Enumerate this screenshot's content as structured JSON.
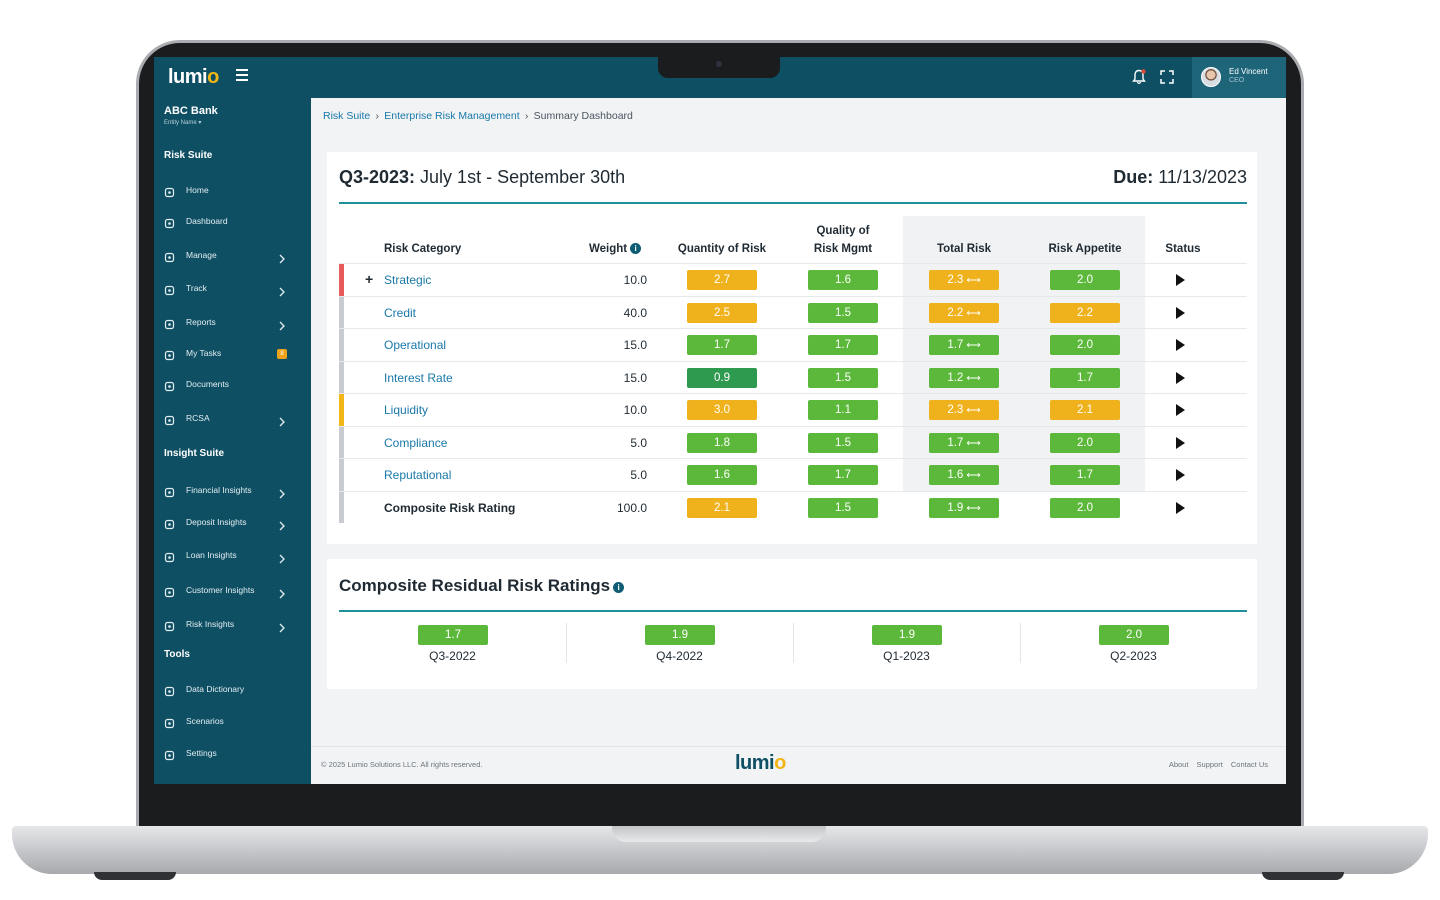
{
  "app": {
    "logo": "lumi",
    "logo_accent": "o"
  },
  "user": {
    "name": "Ed Vincent",
    "role": "CEO"
  },
  "entity": {
    "name": "ABC Bank",
    "label": "Entity Name ▾"
  },
  "sidebar": {
    "sections": [
      {
        "title": "Risk Suite",
        "items": [
          {
            "label": "Home",
            "icon": "home-icon",
            "chevron": false
          },
          {
            "label": "Dashboard",
            "icon": "dashboard-icon",
            "chevron": false
          },
          {
            "label": "Manage",
            "icon": "manage-icon",
            "chevron": true
          },
          {
            "label": "Track",
            "icon": "track-icon",
            "chevron": true
          },
          {
            "label": "Reports",
            "icon": "reports-icon",
            "chevron": true
          },
          {
            "label": "My Tasks",
            "icon": "tasks-icon",
            "chevron": false,
            "badge": "8"
          },
          {
            "label": "Documents",
            "icon": "documents-icon",
            "chevron": false
          },
          {
            "label": "RCSA",
            "icon": "rcsa-icon",
            "chevron": true
          }
        ]
      },
      {
        "title": "Insight Suite",
        "items": [
          {
            "label": "Financial Insights",
            "icon": "financial-icon",
            "chevron": true
          },
          {
            "label": "Deposit Insights",
            "icon": "deposit-icon",
            "chevron": true
          },
          {
            "label": "Loan Insights",
            "icon": "loan-icon",
            "chevron": true
          },
          {
            "label": "Customer Insights",
            "icon": "customer-icon",
            "chevron": true
          },
          {
            "label": "Risk Insights",
            "icon": "risk-icon",
            "chevron": true
          }
        ]
      },
      {
        "title": "Tools",
        "items": [
          {
            "label": "Data Dictionary",
            "icon": "dictionary-icon",
            "chevron": false
          },
          {
            "label": "Scenarios",
            "icon": "scenarios-icon",
            "chevron": false
          },
          {
            "label": "Settings",
            "icon": "gear-icon",
            "chevron": false
          }
        ]
      }
    ]
  },
  "breadcrumb": {
    "items": [
      "Risk Suite",
      "Enterprise Risk Management"
    ],
    "current": "Summary Dashboard"
  },
  "summary": {
    "period_bold": "Q3-2023:",
    "period_text": " July 1st - September 30th",
    "due_bold": "Due:",
    "due_text": " 11/13/2023",
    "headers": {
      "category": "Risk Category",
      "weight": "Weight",
      "quantity": "Quantity of Risk",
      "quality_line1": "Quality of",
      "quality_line2": "Risk Mgmt",
      "total": "Total Risk",
      "appetite": "Risk Appetite",
      "status": "Status"
    },
    "rows": [
      {
        "category": "Strategic",
        "weight": "10.0",
        "quantity": "2.7",
        "quality": "1.6",
        "total": "2.3",
        "appetite": "2.0",
        "expandable": true,
        "bar": "#e85a5a",
        "bold": false
      },
      {
        "category": "Credit",
        "weight": "40.0",
        "quantity": "2.5",
        "quality": "1.5",
        "total": "2.2",
        "appetite": "2.2",
        "expandable": false,
        "bar": "#c8ccd1",
        "bold": false
      },
      {
        "category": "Operational",
        "weight": "15.0",
        "quantity": "1.7",
        "quality": "1.7",
        "total": "1.7",
        "appetite": "2.0",
        "expandable": false,
        "bar": "#c8ccd1",
        "bold": false
      },
      {
        "category": "Interest Rate",
        "weight": "15.0",
        "quantity": "0.9",
        "quality": "1.5",
        "total": "1.2",
        "appetite": "1.7",
        "expandable": false,
        "bar": "#c8ccd1",
        "bold": false
      },
      {
        "category": "Liquidity",
        "weight": "10.0",
        "quantity": "3.0",
        "quality": "1.1",
        "total": "2.3",
        "appetite": "2.1",
        "expandable": false,
        "bar": "#f3b617",
        "bold": false
      },
      {
        "category": "Compliance",
        "weight": "5.0",
        "quantity": "1.8",
        "quality": "1.5",
        "total": "1.7",
        "appetite": "2.0",
        "expandable": false,
        "bar": "#c8ccd1",
        "bold": false
      },
      {
        "category": "Reputational",
        "weight": "5.0",
        "quantity": "1.6",
        "quality": "1.7",
        "total": "1.6",
        "appetite": "1.7",
        "expandable": false,
        "bar": "#c8ccd1",
        "bold": false
      },
      {
        "category": "Composite Risk Rating",
        "weight": "100.0",
        "quantity": "2.1",
        "quality": "1.5",
        "total": "1.9",
        "appetite": "2.0",
        "expandable": false,
        "bar": "#c8ccd1",
        "bold": true
      }
    ],
    "trend_arrow": "⟷"
  },
  "composite": {
    "title": "Composite Residual Risk Ratings",
    "quarters": [
      {
        "value": "1.7",
        "label": "Q3-2022"
      },
      {
        "value": "1.9",
        "label": "Q4-2022"
      },
      {
        "value": "1.9",
        "label": "Q1-2023"
      },
      {
        "value": "2.0",
        "label": "Q2-2023"
      }
    ]
  },
  "footer": {
    "copyright": "© 2025 Lumio Solutions LLC. All rights reserved.",
    "links": [
      "About",
      "Support",
      "Contact Us"
    ]
  },
  "colors": {
    "teal_dark": "#0f4f63",
    "accent_teal": "#1f8f99",
    "green": "#5cb83a",
    "dark_green": "#2e9a4f",
    "amber": "#efb21c",
    "red_bar": "#e85a5a",
    "yellow_bar": "#f3b617"
  }
}
